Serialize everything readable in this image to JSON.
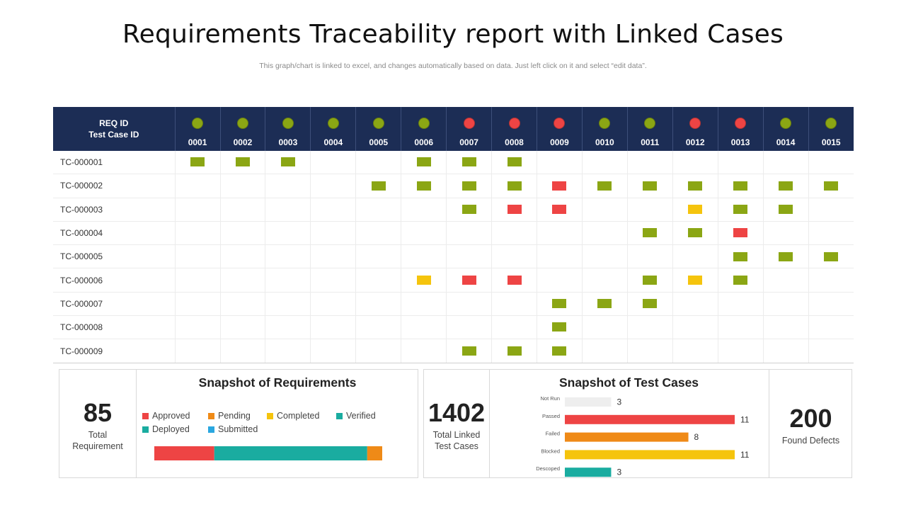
{
  "header": {
    "title": "Requirements Traceability report with Linked Cases",
    "subtitle": "This graph/chart is linked to excel,  and changes automatically based on data. Just left click on it and select “edit data”."
  },
  "colors": {
    "green": "#8ba614",
    "red": "#ee4444",
    "yellow": "#f5c40d",
    "header_bg": "#1c2d55"
  },
  "matrix": {
    "corner_label_1": "REQ ID",
    "corner_label_2": "Test Case ID",
    "requirements": [
      {
        "id": "0001",
        "status": "green"
      },
      {
        "id": "0002",
        "status": "green"
      },
      {
        "id": "0003",
        "status": "green"
      },
      {
        "id": "0004",
        "status": "green"
      },
      {
        "id": "0005",
        "status": "green"
      },
      {
        "id": "0006",
        "status": "green"
      },
      {
        "id": "0007",
        "status": "red"
      },
      {
        "id": "0008",
        "status": "red"
      },
      {
        "id": "0009",
        "status": "red"
      },
      {
        "id": "0010",
        "status": "green"
      },
      {
        "id": "0011",
        "status": "green"
      },
      {
        "id": "0012",
        "status": "red"
      },
      {
        "id": "0013",
        "status": "red"
      },
      {
        "id": "0014",
        "status": "green"
      },
      {
        "id": "0015",
        "status": "green"
      }
    ],
    "test_cases": [
      {
        "id": "TC-000001",
        "cells": [
          "G",
          "G",
          "G",
          "",
          "",
          "G",
          "G",
          "G",
          "",
          "",
          "",
          "",
          "",
          "",
          ""
        ]
      },
      {
        "id": "TC-000002",
        "cells": [
          "",
          "",
          "",
          "",
          "G",
          "G",
          "G",
          "G",
          "R",
          "G",
          "G",
          "G",
          "G",
          "G",
          "G"
        ]
      },
      {
        "id": "TC-000003",
        "cells": [
          "",
          "",
          "",
          "",
          "",
          "",
          "G",
          "R",
          "R",
          "",
          "",
          "Y",
          "G",
          "G",
          ""
        ]
      },
      {
        "id": "TC-000004",
        "cells": [
          "",
          "",
          "",
          "",
          "",
          "",
          "",
          "",
          "",
          "",
          "G",
          "G",
          "R",
          "",
          ""
        ]
      },
      {
        "id": "TC-000005",
        "cells": [
          "",
          "",
          "",
          "",
          "",
          "",
          "",
          "",
          "",
          "",
          "",
          "",
          "G",
          "G",
          "G"
        ]
      },
      {
        "id": "TC-000006",
        "cells": [
          "",
          "",
          "",
          "",
          "",
          "Y",
          "R",
          "R",
          "",
          "",
          "G",
          "Y",
          "G",
          "",
          ""
        ]
      },
      {
        "id": "TC-000007",
        "cells": [
          "",
          "",
          "",
          "",
          "",
          "",
          "",
          "",
          "G",
          "G",
          "G",
          "",
          "",
          "",
          ""
        ]
      },
      {
        "id": "TC-000008",
        "cells": [
          "",
          "",
          "",
          "",
          "",
          "",
          "",
          "",
          "G",
          "",
          "",
          "",
          "",
          "",
          ""
        ]
      },
      {
        "id": "TC-000009",
        "cells": [
          "",
          "",
          "",
          "",
          "",
          "",
          "G",
          "G",
          "G",
          "",
          "",
          "",
          "",
          "",
          ""
        ]
      }
    ]
  },
  "requirements_panel": {
    "total": "85",
    "total_label_1": "Total",
    "total_label_2": "Requirement",
    "title": "Snapshot of Requirements"
  },
  "testcases_panel": {
    "total": "1402",
    "total_label_1": "Total Linked",
    "total_label_2": "Test Cases",
    "title": "Snapshot of Test Cases",
    "defects": "200",
    "defects_label": "Found Defects"
  },
  "chart_data": [
    {
      "type": "bar",
      "orientation": "horizontal-stacked",
      "title": "Snapshot of Requirements",
      "legend_placement": "top",
      "series": [
        {
          "name": "Approved",
          "color": "#ee4444",
          "value": 20
        },
        {
          "name": "Pending",
          "color": "#ef8a17",
          "value": 5
        },
        {
          "name": "Completed",
          "color": "#f5c40d",
          "value": 0
        },
        {
          "name": "Verified",
          "color": "#1aaca0",
          "value": 51
        },
        {
          "name": "Deployed",
          "color": "#1aaca0",
          "value": 0
        },
        {
          "name": "Submitted",
          "color": "#2aa7e0",
          "value": 0
        }
      ],
      "segment_order": [
        "Approved",
        "Verified",
        "Pending"
      ]
    },
    {
      "type": "bar",
      "orientation": "horizontal",
      "title": "Snapshot of Test Cases",
      "categories": [
        "Not Run",
        "Passed",
        "Failed",
        "Blocked",
        "Descoped"
      ],
      "values": [
        3,
        11,
        8,
        11,
        3
      ],
      "colors": [
        "#eeeeee",
        "#ee4444",
        "#ef8a17",
        "#f5c40d",
        "#1aaca0"
      ],
      "xlim": [
        0,
        11
      ]
    }
  ]
}
